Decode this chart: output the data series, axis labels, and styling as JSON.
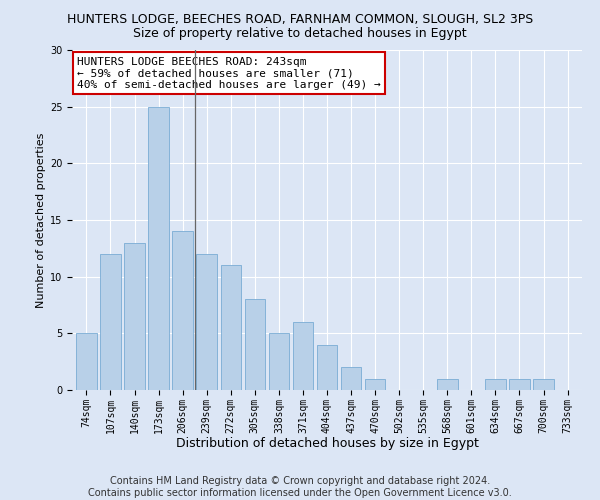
{
  "title": "HUNTERS LODGE, BEECHES ROAD, FARNHAM COMMON, SLOUGH, SL2 3PS",
  "subtitle": "Size of property relative to detached houses in Egypt",
  "xlabel": "Distribution of detached houses by size in Egypt",
  "ylabel": "Number of detached properties",
  "categories": [
    "74sqm",
    "107sqm",
    "140sqm",
    "173sqm",
    "206sqm",
    "239sqm",
    "272sqm",
    "305sqm",
    "338sqm",
    "371sqm",
    "404sqm",
    "437sqm",
    "470sqm",
    "502sqm",
    "535sqm",
    "568sqm",
    "601sqm",
    "634sqm",
    "667sqm",
    "700sqm",
    "733sqm"
  ],
  "values": [
    5,
    12,
    13,
    25,
    14,
    12,
    11,
    8,
    5,
    6,
    4,
    2,
    1,
    0,
    0,
    1,
    0,
    1,
    1,
    1,
    0
  ],
  "bar_color": "#b8d0e8",
  "bar_edge_color": "#7aacd4",
  "highlight_index": 4,
  "highlight_line_color": "#666666",
  "ylim": [
    0,
    30
  ],
  "yticks": [
    0,
    5,
    10,
    15,
    20,
    25,
    30
  ],
  "annotation_text": "HUNTERS LODGE BEECHES ROAD: 243sqm\n← 59% of detached houses are smaller (71)\n40% of semi-detached houses are larger (49) →",
  "annotation_box_color": "#ffffff",
  "annotation_box_edge": "#cc0000",
  "footer": "Contains HM Land Registry data © Crown copyright and database right 2024.\nContains public sector information licensed under the Open Government Licence v3.0.",
  "background_color": "#dce6f5",
  "plot_background": "#dce6f5",
  "title_fontsize": 9,
  "subtitle_fontsize": 9,
  "xlabel_fontsize": 9,
  "ylabel_fontsize": 8,
  "tick_fontsize": 7,
  "footer_fontsize": 7,
  "annotation_fontsize": 8
}
